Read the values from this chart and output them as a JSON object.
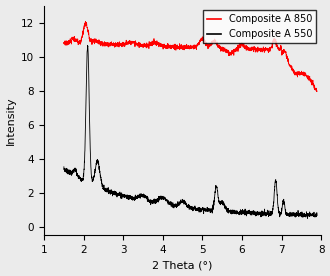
{
  "title": "",
  "xlabel": "2 Theta (°)",
  "ylabel": "Intensity",
  "xlim": [
    1,
    8
  ],
  "ylim": [
    -0.5,
    13
  ],
  "xticks": [
    1,
    2,
    3,
    4,
    5,
    6,
    7,
    8
  ],
  "yticks": [
    0,
    2,
    4,
    6,
    8,
    10,
    12
  ],
  "legend": [
    "Composite A 850",
    "Composite A 550"
  ],
  "line_colors": [
    "red",
    "black"
  ],
  "figsize": [
    3.3,
    2.76
  ],
  "dpi": 100,
  "background_color": "#f0f0f0"
}
